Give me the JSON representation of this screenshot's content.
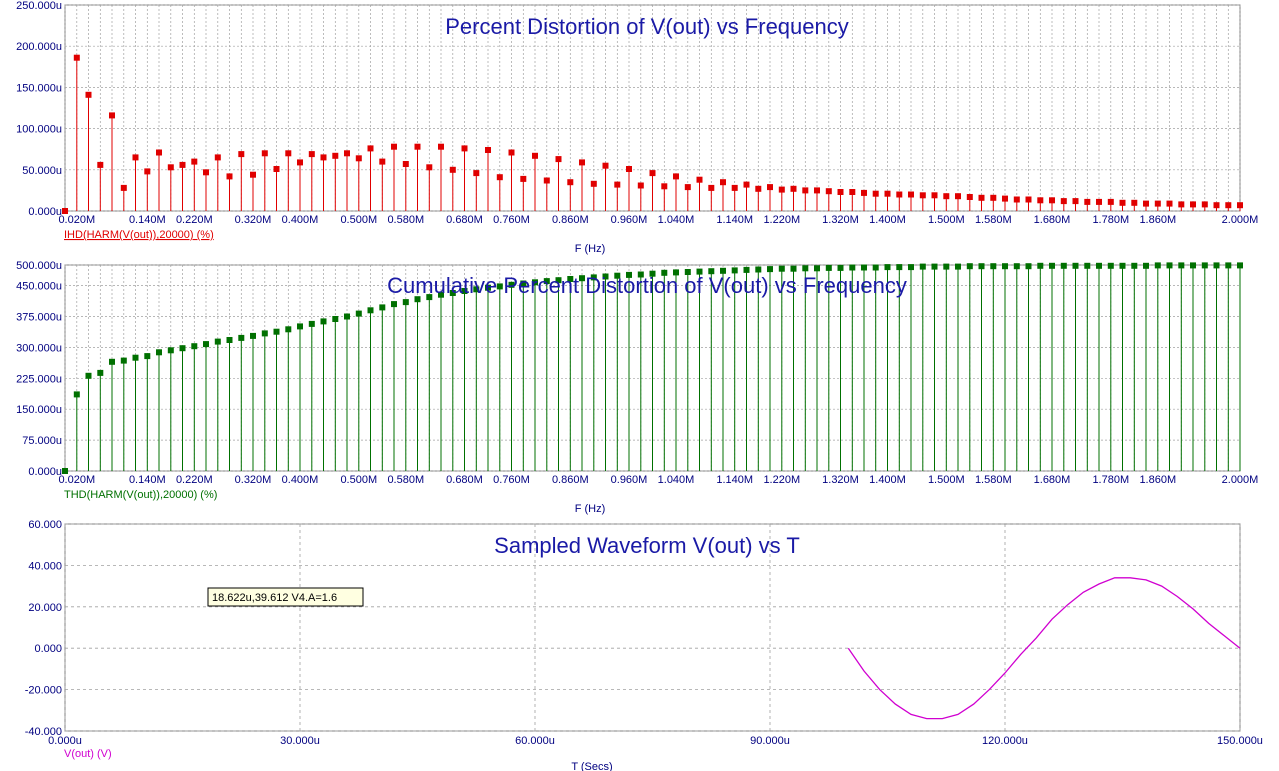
{
  "window": {
    "top_caption": ""
  },
  "colors": {
    "ihd": "#e00000",
    "thd": "#007000",
    "vout": "#d000d0",
    "axis_text": "#000080",
    "title": "#1a1aa6",
    "grid": "#a0a0a0"
  },
  "chart_data": [
    {
      "type": "stem",
      "title": "Percent Distortion of V(out) vs Frequency",
      "xlabel": "F (Hz)",
      "legend": "IHD(HARM(V(out)),20000) (%)",
      "color": "#e00000",
      "xlim": [
        0,
        2000000
      ],
      "ylim": [
        0,
        250
      ],
      "ytick_labels": [
        "0.000u",
        "50.000u",
        "100.000u",
        "150.000u",
        "200.000u",
        "250.000u"
      ],
      "xtick_labels": [
        "0.020M",
        "0.140M",
        "0.220M",
        "0.320M",
        "0.400M",
        "0.500M",
        "0.580M",
        "0.680M",
        "0.760M",
        "0.860M",
        "0.960M",
        "1.040M",
        "1.140M",
        "1.220M",
        "1.320M",
        "1.400M",
        "1.500M",
        "1.580M",
        "1.680M",
        "1.780M",
        "1.860M",
        "2.000M"
      ],
      "xtick_values": [
        20000,
        140000,
        220000,
        320000,
        400000,
        500000,
        580000,
        680000,
        760000,
        860000,
        960000,
        1040000,
        1140000,
        1220000,
        1320000,
        1400000,
        1500000,
        1580000,
        1680000,
        1780000,
        1860000,
        2000000
      ],
      "x_start": 0,
      "x_step": 20000,
      "values": [
        0,
        186,
        141,
        56,
        116,
        28,
        65,
        48,
        71,
        53,
        56,
        60,
        47,
        65,
        42,
        69,
        44,
        70,
        51,
        70,
        59,
        69,
        65,
        67,
        70,
        64,
        76,
        60,
        78,
        57,
        78,
        53,
        78,
        50,
        76,
        46,
        74,
        41,
        71,
        39,
        67,
        37,
        63,
        35,
        59,
        33,
        55,
        32,
        51,
        31,
        46,
        30,
        42,
        29,
        38,
        28,
        35,
        28,
        32,
        27,
        29,
        26,
        27,
        25,
        25,
        24,
        23,
        23,
        22,
        21,
        21,
        20,
        20,
        19,
        19,
        18,
        18,
        17,
        16,
        16,
        15,
        14,
        14,
        13,
        13,
        12,
        12,
        11,
        11,
        11,
        10,
        10,
        9,
        9,
        9,
        8,
        8,
        8,
        7,
        7,
        7
      ]
    },
    {
      "type": "stem",
      "title": "Cumulative Percent Distortion of V(out) vs Frequency",
      "xlabel": "F (Hz)",
      "legend": "THD(HARM(V(out)),20000) (%)",
      "color": "#007000",
      "xlim": [
        0,
        2000000
      ],
      "ylim": [
        0,
        500
      ],
      "ytick_labels": [
        "0.000u",
        "75.000u",
        "150.000u",
        "225.000u",
        "300.000u",
        "375.000u",
        "450.000u",
        "500.000u"
      ],
      "ytick_values": [
        0,
        75,
        150,
        225,
        300,
        375,
        450,
        500
      ],
      "xtick_labels": [
        "0.020M",
        "0.140M",
        "0.220M",
        "0.320M",
        "0.400M",
        "0.500M",
        "0.580M",
        "0.680M",
        "0.760M",
        "0.860M",
        "0.960M",
        "1.040M",
        "1.140M",
        "1.220M",
        "1.320M",
        "1.400M",
        "1.500M",
        "1.580M",
        "1.680M",
        "1.780M",
        "1.860M",
        "2.000M"
      ],
      "xtick_values": [
        20000,
        140000,
        220000,
        320000,
        400000,
        500000,
        580000,
        680000,
        760000,
        860000,
        960000,
        1040000,
        1140000,
        1220000,
        1320000,
        1400000,
        1500000,
        1580000,
        1680000,
        1780000,
        1860000,
        2000000
      ],
      "x_start": 0,
      "x_step": 20000,
      "values": [
        0,
        186,
        231,
        238,
        265,
        268,
        275,
        279,
        288,
        293,
        298,
        303,
        308,
        314,
        318,
        323,
        328,
        334,
        338,
        344,
        351,
        357,
        363,
        369,
        375,
        382,
        390,
        397,
        405,
        410,
        417,
        422,
        428,
        432,
        437,
        441,
        445,
        448,
        452,
        455,
        458,
        461,
        463,
        466,
        468,
        470,
        472,
        474,
        476,
        477,
        479,
        481,
        482,
        483,
        484,
        485,
        486,
        487,
        488,
        489,
        490,
        491,
        491,
        492,
        492,
        493,
        493,
        494,
        494,
        494,
        495,
        495,
        495,
        496,
        496,
        496,
        496,
        497,
        497,
        497,
        497,
        497,
        497,
        498,
        498,
        498,
        498,
        498,
        498,
        498,
        498,
        498,
        498,
        499,
        499,
        499,
        499,
        499,
        499,
        499,
        499
      ]
    },
    {
      "type": "line",
      "title": "Sampled Waveform  V(out) vs T",
      "xlabel": "T (Secs)",
      "legend": "V(out) (V)",
      "color": "#d000d0",
      "xlim": [
        0,
        150
      ],
      "ylim": [
        -40,
        60
      ],
      "xtick_labels": [
        "0.000u",
        "30.000u",
        "60.000u",
        "90.000u",
        "120.000u",
        "150.000u"
      ],
      "xtick_values": [
        0,
        30,
        60,
        90,
        120,
        150
      ],
      "ytick_labels": [
        "-40.000",
        "-20.000",
        "0.000",
        "20.000",
        "40.000",
        "60.000"
      ],
      "ytick_values": [
        -40,
        -20,
        0,
        20,
        40,
        60
      ],
      "x_unit": "u",
      "series": [
        {
          "x": [
            100,
            102,
            104,
            106,
            108,
            110,
            112,
            114,
            116,
            118,
            120,
            122,
            124,
            126,
            128,
            130,
            132,
            134,
            136,
            138,
            140,
            142,
            144,
            146,
            148,
            150
          ],
          "y": [
            0,
            -11,
            -20,
            -27,
            -32,
            -34,
            -34,
            -32,
            -27,
            -20,
            -12,
            -3,
            5,
            14,
            21,
            27,
            31,
            34,
            34,
            33,
            30,
            25,
            19,
            12,
            6,
            0
          ]
        }
      ],
      "annotation": "18.622u,39.612 V4.A=1.6"
    }
  ]
}
